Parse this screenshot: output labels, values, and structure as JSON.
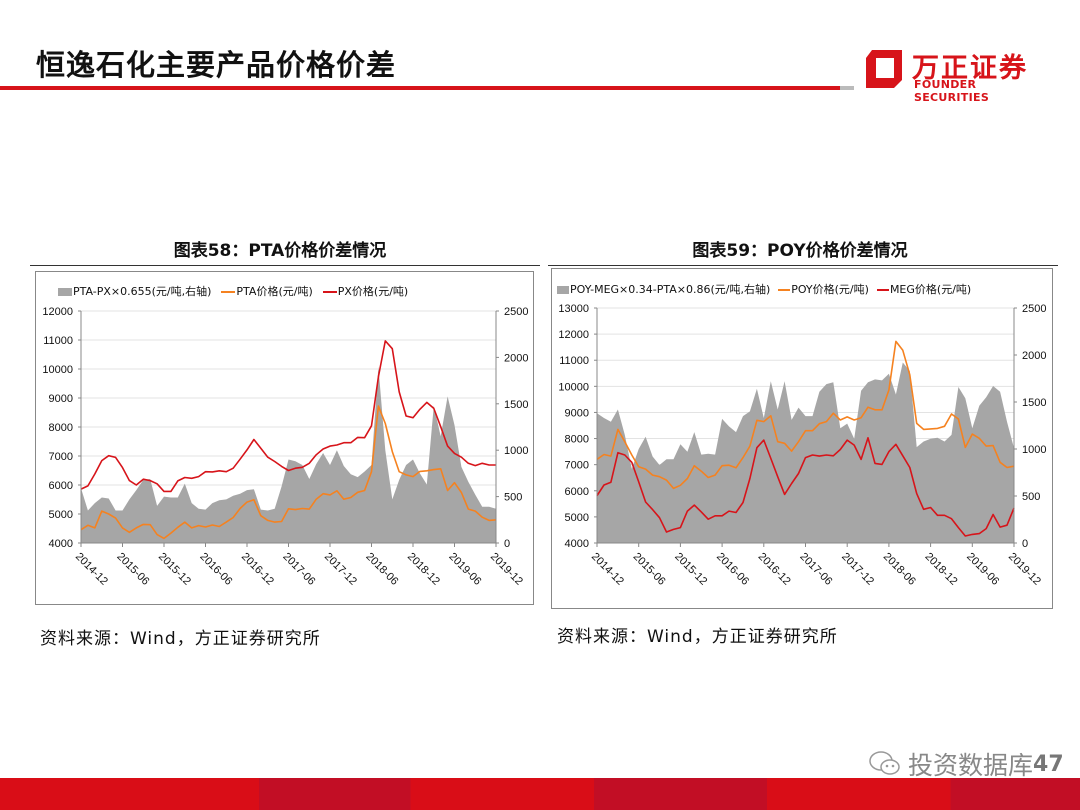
{
  "header": {
    "title": "恒逸石化主要产品价格价差",
    "logo_cn": "万正证券",
    "logo_en": "FOUNDER SECURITIES"
  },
  "colors": {
    "brand": "#d7141a",
    "area": "#a6a6a6",
    "orange": "#f58220",
    "red": "#d7141a"
  },
  "footer": {
    "watermark": "投资数据库",
    "page": "47",
    "watermark_icon": "wechat-icon"
  },
  "chart_data": [
    {
      "type": "line+area",
      "caption": "图表58：PTA价格价差情况",
      "source": "资料来源：Wind，方正证券研究所",
      "x_ticks": [
        "2014-12",
        "2015-06",
        "2015-12",
        "2016-06",
        "2016-12",
        "2017-06",
        "2017-12",
        "2018-06",
        "2018-12",
        "2019-06",
        "2019-12"
      ],
      "x_range": [
        "2014-12",
        "2019-12"
      ],
      "frequency": "monthly",
      "ylim_left": [
        4000,
        12000
      ],
      "yticks_left": [
        4000,
        5000,
        6000,
        7000,
        8000,
        9000,
        10000,
        11000,
        12000
      ],
      "ylim_right": [
        0,
        2500
      ],
      "yticks_right": [
        0,
        500,
        1000,
        1500,
        2000,
        2500
      ],
      "grid": true,
      "legend": "top",
      "series": [
        {
          "name": "PTA-PX×0.655(元/吨,右轴)",
          "kind": "area",
          "axis": "right",
          "color": "#a6a6a6",
          "values": [
            590,
            350,
            430,
            490,
            480,
            350,
            350,
            470,
            570,
            680,
            690,
            400,
            500,
            490,
            490,
            640,
            430,
            370,
            360,
            430,
            460,
            470,
            510,
            530,
            570,
            580,
            360,
            350,
            370,
            610,
            900,
            880,
            840,
            690,
            850,
            970,
            840,
            1000,
            830,
            740,
            710,
            770,
            840,
            1900,
            1000,
            470,
            680,
            840,
            900,
            750,
            630,
            1480,
            1150,
            1580,
            1270,
            820,
            660,
            520,
            390,
            390,
            370
          ]
        },
        {
          "name": "PTA价格(元/吨)",
          "kind": "line",
          "axis": "left",
          "color": "#f58220",
          "values": [
            4460,
            4610,
            4520,
            5100,
            5000,
            4860,
            4520,
            4370,
            4520,
            4640,
            4630,
            4290,
            4160,
            4340,
            4540,
            4720,
            4520,
            4600,
            4550,
            4620,
            4570,
            4720,
            4880,
            5190,
            5410,
            5490,
            4940,
            4780,
            4720,
            4740,
            5180,
            5150,
            5190,
            5170,
            5510,
            5700,
            5660,
            5800,
            5510,
            5570,
            5750,
            5810,
            6460,
            8720,
            8120,
            7150,
            6460,
            6350,
            6290,
            6470,
            6490,
            6530,
            6560,
            5810,
            6080,
            5740,
            5170,
            5100,
            4890,
            4780,
            4800
          ]
        },
        {
          "name": "PX价格(元/吨)",
          "kind": "line",
          "axis": "left",
          "color": "#d7141a",
          "values": [
            5860,
            5970,
            6380,
            6840,
            7010,
            6950,
            6600,
            6150,
            6000,
            6200,
            6150,
            6040,
            5780,
            5780,
            6140,
            6260,
            6230,
            6290,
            6460,
            6450,
            6490,
            6460,
            6580,
            6890,
            7210,
            7570,
            7270,
            6960,
            6810,
            6640,
            6500,
            6580,
            6610,
            6750,
            7040,
            7240,
            7340,
            7380,
            7460,
            7460,
            7640,
            7630,
            8040,
            9730,
            10970,
            10700,
            9210,
            8380,
            8320,
            8610,
            8850,
            8640,
            8010,
            7340,
            7090,
            6960,
            6750,
            6670,
            6750,
            6690,
            6690
          ]
        }
      ]
    },
    {
      "type": "line+area",
      "caption": "图表59：POY价格价差情况",
      "source": "资料来源：Wind，方正证券研究所",
      "x_ticks": [
        "2014-12",
        "2015-06",
        "2015-12",
        "2016-06",
        "2016-12",
        "2017-06",
        "2017-12",
        "2018-06",
        "2018-12",
        "2019-06",
        "2019-12"
      ],
      "x_range": [
        "2014-12",
        "2019-12"
      ],
      "frequency": "monthly",
      "ylim_left": [
        4000,
        13000
      ],
      "yticks_left": [
        4000,
        5000,
        6000,
        7000,
        8000,
        9000,
        10000,
        11000,
        12000,
        13000
      ],
      "ylim_right": [
        0,
        2500
      ],
      "yticks_right": [
        0,
        500,
        1000,
        1500,
        2000,
        2500
      ],
      "grid": true,
      "legend": "top",
      "series": [
        {
          "name": "POY-MEG×0.34-PTA×0.86(元/吨,右轴)",
          "kind": "area",
          "axis": "right",
          "color": "#a6a6a6",
          "values": [
            1380,
            1330,
            1290,
            1420,
            1150,
            790,
            1000,
            1130,
            920,
            830,
            890,
            890,
            1050,
            970,
            1180,
            940,
            950,
            940,
            1320,
            1240,
            1180,
            1350,
            1400,
            1640,
            1330,
            1720,
            1420,
            1720,
            1310,
            1440,
            1350,
            1350,
            1610,
            1690,
            1710,
            1220,
            1270,
            1110,
            1620,
            1710,
            1740,
            1730,
            1800,
            1580,
            1920,
            1830,
            1020,
            1080,
            1110,
            1120,
            1080,
            1150,
            1660,
            1540,
            1220,
            1460,
            1550,
            1670,
            1610,
            1290,
            1010
          ]
        },
        {
          "name": "POY价格(元/吨)",
          "kind": "line",
          "axis": "left",
          "color": "#f58220",
          "values": [
            7200,
            7390,
            7330,
            8350,
            7880,
            7370,
            6920,
            6830,
            6600,
            6540,
            6410,
            6090,
            6210,
            6470,
            6960,
            6750,
            6510,
            6600,
            6960,
            6980,
            6880,
            7270,
            7710,
            8700,
            8650,
            8870,
            7880,
            7820,
            7520,
            7880,
            8300,
            8300,
            8570,
            8650,
            8970,
            8710,
            8830,
            8710,
            8800,
            9200,
            9100,
            9100,
            9860,
            11720,
            11380,
            10440,
            8580,
            8350,
            8370,
            8390,
            8470,
            8940,
            8750,
            7660,
            8170,
            8010,
            7710,
            7730,
            7090,
            6890,
            6940
          ]
        },
        {
          "name": "MEG价格(元/吨)",
          "kind": "line",
          "axis": "left",
          "color": "#d7141a",
          "values": [
            5810,
            6220,
            6330,
            7460,
            7370,
            7090,
            6340,
            5570,
            5280,
            4970,
            4420,
            4520,
            4590,
            5220,
            5450,
            5190,
            4910,
            5040,
            5040,
            5220,
            5170,
            5550,
            6470,
            7650,
            7940,
            7240,
            6540,
            5860,
            6280,
            6660,
            7270,
            7370,
            7330,
            7370,
            7340,
            7580,
            7940,
            7750,
            7200,
            8030,
            7050,
            7010,
            7500,
            7780,
            7340,
            6890,
            5890,
            5290,
            5360,
            5060,
            5060,
            4930,
            4590,
            4270,
            4330,
            4360,
            4550,
            5090,
            4610,
            4680,
            5340
          ]
        }
      ]
    }
  ]
}
